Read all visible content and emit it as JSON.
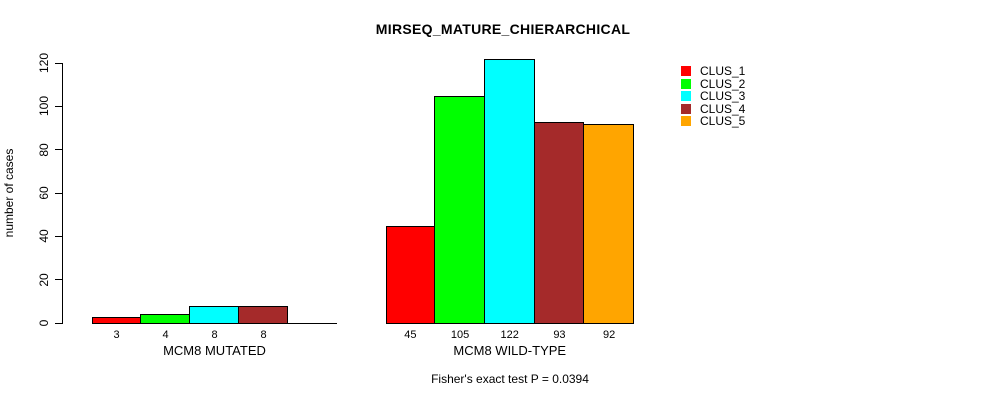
{
  "chart_data": {
    "type": "bar",
    "title": "MIRSEQ_MATURE_CHIERARCHICAL",
    "ylabel": "number of cases",
    "xlabel": "",
    "footer": "Fisher's exact test P = 0.0394",
    "ylim": [
      0,
      120
    ],
    "yticks": [
      0,
      20,
      40,
      60,
      80,
      100,
      120
    ],
    "grid": false,
    "legend_position": "right",
    "series": [
      "CLUS_1",
      "CLUS_2",
      "CLUS_3",
      "CLUS_4",
      "CLUS_5"
    ],
    "colors": [
      "#FF0000",
      "#00FF00",
      "#00FFFF",
      "#A52A2A",
      "#FFA500"
    ],
    "groups": [
      {
        "label": "MCM8 MUTATED",
        "values": [
          3,
          4,
          8,
          8,
          null
        ]
      },
      {
        "label": "MCM8 WILD-TYPE",
        "values": [
          45,
          105,
          122,
          93,
          92
        ]
      }
    ]
  }
}
